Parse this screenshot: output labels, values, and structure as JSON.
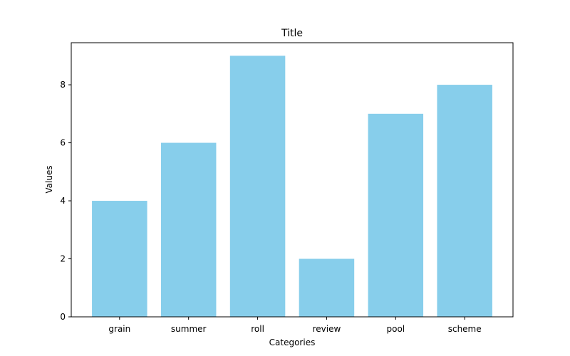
{
  "chart_data": {
    "type": "bar",
    "title": "Title",
    "xlabel": "Categories",
    "ylabel": "Values",
    "categories": [
      "grain",
      "summer",
      "roll",
      "review",
      "pool",
      "scheme"
    ],
    "values": [
      4,
      6,
      9,
      2,
      7,
      8
    ],
    "ylim": [
      0,
      9.45
    ],
    "yticks": [
      0,
      2,
      4,
      6,
      8
    ],
    "bar_color": "#87CEEB",
    "grid": false,
    "legend": "none"
  }
}
